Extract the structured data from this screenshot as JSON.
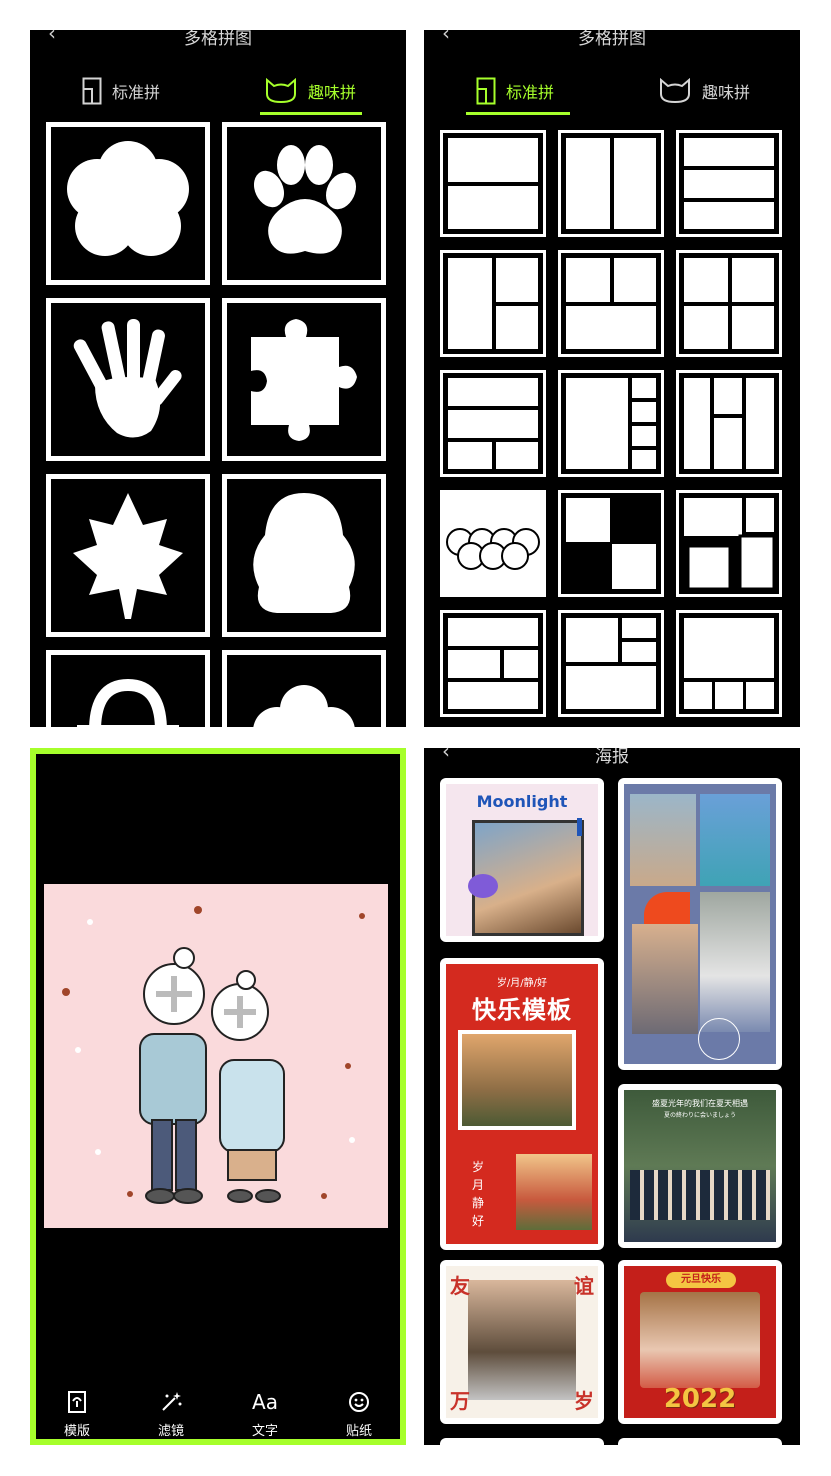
{
  "panel1": {
    "title": "多格拼图",
    "tabs": [
      {
        "label": "标准拼",
        "active": false
      },
      {
        "label": "趣味拼",
        "active": true
      }
    ]
  },
  "panel2": {
    "title": "多格拼图",
    "tabs": [
      {
        "label": "标准拼",
        "active": true
      },
      {
        "label": "趣味拼",
        "active": false
      }
    ]
  },
  "editor": {
    "tools": [
      {
        "label": "模版",
        "icon": "template-icon"
      },
      {
        "label": "滤镜",
        "icon": "filter-wand-icon"
      },
      {
        "label": "文字",
        "icon_text": "Aa",
        "icon": "text-icon"
      },
      {
        "label": "贴纸",
        "icon": "sticker-smiley-icon"
      }
    ]
  },
  "panel4": {
    "title": "海报",
    "posters": {
      "moonlight": "Moonlight",
      "happy_header": "岁/月/静/好",
      "happy_title": "快乐模板",
      "happy_vertical": "岁月静好",
      "grad_line1": "盛夏光年的我们在夏天相遇",
      "grad_line2": "夏の終わりに会いましょう",
      "friend_top_left": "友",
      "friend_top_right": "谊",
      "friend_bottom_left": "万",
      "friend_bottom_right": "岁",
      "newyear_banner": "元旦快乐",
      "newyear_year": "2022"
    }
  },
  "colors": {
    "accent": "#a6ff2b",
    "panel_bg": "#000000",
    "canvas_bg": "#fadadc",
    "poster_red": "#d42a1f"
  }
}
